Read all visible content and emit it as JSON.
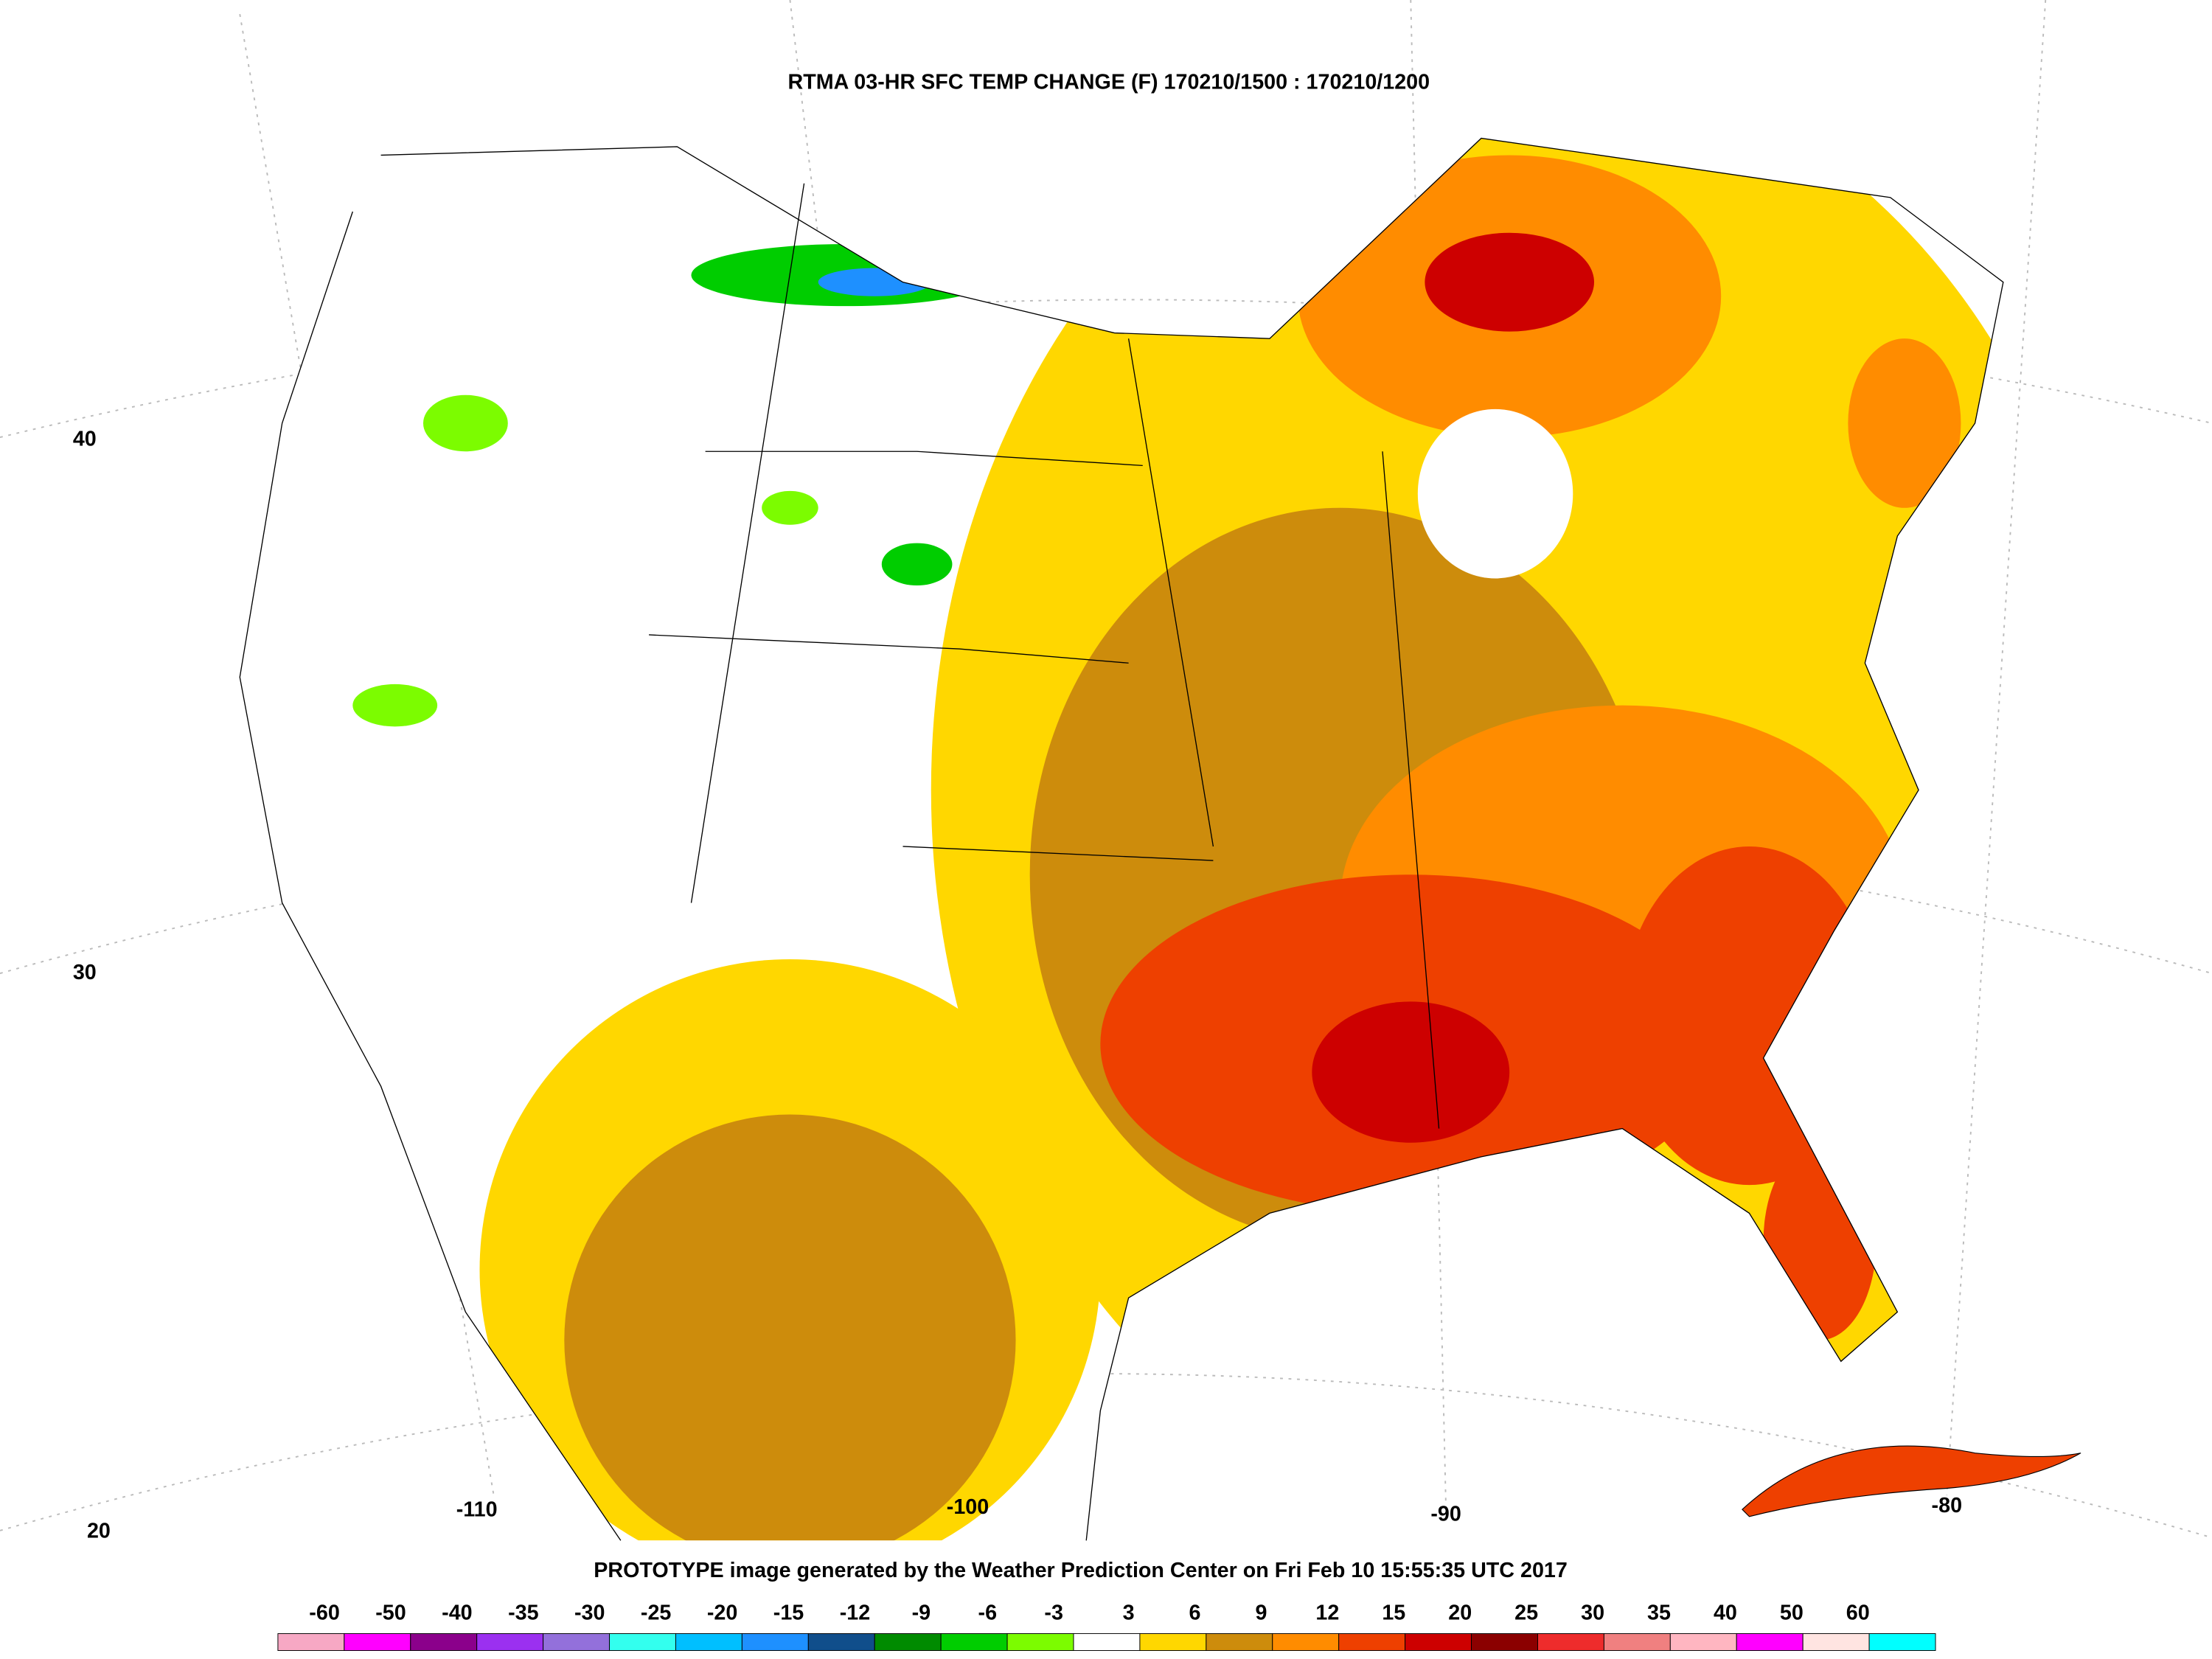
{
  "title": "RTMA 03-HR SFC TEMP CHANGE (F) 170210/1500 : 170210/1200",
  "footer": "PROTOTYPE image generated by the Weather Prediction Center on Fri Feb 10 15:55:35 UTC 2017",
  "latitude_labels": [
    40,
    30,
    20
  ],
  "longitude_labels": [
    -110,
    -100,
    -90,
    -80
  ],
  "colorbar": {
    "labels": [
      -60,
      -50,
      -40,
      -35,
      -30,
      -25,
      -20,
      -15,
      -12,
      -9,
      -6,
      -3,
      3,
      6,
      9,
      12,
      15,
      20,
      25,
      30,
      35,
      40,
      50,
      60
    ],
    "colors": [
      "#f7a8c4",
      "#ff00ff",
      "#8b008b",
      "#9b30f0",
      "#9370db",
      "#33ffee",
      "#00bfff",
      "#1e90ff",
      "#104e8b",
      "#008b00",
      "#00cd00",
      "#7cfc00",
      "#ffffff",
      "#ffd700",
      "#cd8c0c",
      "#ff8c00",
      "#ee4000",
      "#cd0000",
      "#8b0000",
      "#ee2c2c",
      "#f08080",
      "#ffb6c1",
      "#ff00ff",
      "#ffe4e1",
      "#00ffff"
    ]
  }
}
